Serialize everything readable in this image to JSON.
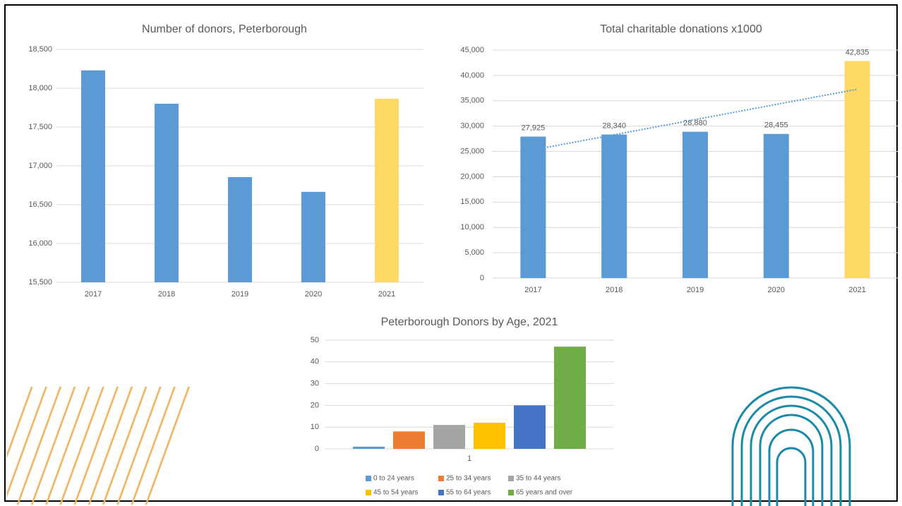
{
  "chart_data": [
    {
      "type": "bar",
      "title": "Number of donors, Peterborough",
      "categories": [
        "2017",
        "2018",
        "2019",
        "2020",
        "2021"
      ],
      "values": [
        18230,
        17800,
        16855,
        16665,
        17865
      ],
      "colors": [
        "#5b9bd5",
        "#5b9bd5",
        "#5b9bd5",
        "#5b9bd5",
        "#ffd966"
      ],
      "ylim": [
        15500,
        18500
      ],
      "yticks": [
        {
          "value": 15500,
          "label": "15,500"
        },
        {
          "value": 16000,
          "label": "16,000"
        },
        {
          "value": 16500,
          "label": "16,500"
        },
        {
          "value": 17000,
          "label": "17,000"
        },
        {
          "value": 17500,
          "label": "17,500"
        },
        {
          "value": 18000,
          "label": "18,000"
        },
        {
          "value": 18500,
          "label": "18,500"
        }
      ],
      "grid": true
    },
    {
      "type": "bar",
      "title": "Total charitable donations x1000",
      "categories": [
        "2017",
        "2018",
        "2019",
        "2020",
        "2021"
      ],
      "values": [
        27925,
        28340,
        28880,
        28455,
        42835
      ],
      "value_labels": [
        "27,925",
        "28,340",
        "28,880",
        "28,455",
        "42,835"
      ],
      "colors": [
        "#5b9bd5",
        "#5b9bd5",
        "#5b9bd5",
        "#5b9bd5",
        "#ffd966"
      ],
      "ylim": [
        0,
        45000
      ],
      "yticks": [
        0,
        {
          "value": 5000,
          "label": "5,000"
        },
        {
          "value": 10000,
          "label": "10,000"
        },
        {
          "value": 15000,
          "label": "15,000"
        },
        {
          "value": 20000,
          "label": "20,000"
        },
        {
          "value": 25000,
          "label": "25,000"
        },
        {
          "value": 30000,
          "label": "30,000"
        },
        {
          "value": 35000,
          "label": "35,000"
        },
        {
          "value": 40000,
          "label": "40,000"
        },
        {
          "value": 45000,
          "label": "45,000"
        }
      ],
      "grid": true,
      "trendline": true,
      "trendline_color": "#5b9bd5"
    },
    {
      "type": "bar",
      "title": "Peterborough Donors by Age, 2021",
      "categories": [
        "1"
      ],
      "series": [
        {
          "name": "0 to 24 years",
          "color": "#5b9bd5",
          "values": [
            1
          ]
        },
        {
          "name": "25 to 34 years",
          "color": "#ed7d31",
          "values": [
            8
          ]
        },
        {
          "name": "35 to 44 years",
          "color": "#a5a5a5",
          "values": [
            11
          ]
        },
        {
          "name": "45 to 54 years",
          "color": "#ffc000",
          "values": [
            12
          ]
        },
        {
          "name": "55 to 64 years",
          "color": "#4472c4",
          "values": [
            20
          ]
        },
        {
          "name": "65 years and over",
          "color": "#70ad47",
          "values": [
            47
          ]
        }
      ],
      "ylim": [
        0,
        50
      ],
      "yticks": [
        0,
        10,
        20,
        30,
        40,
        50
      ],
      "grid": true,
      "legend": "bottom"
    }
  ]
}
